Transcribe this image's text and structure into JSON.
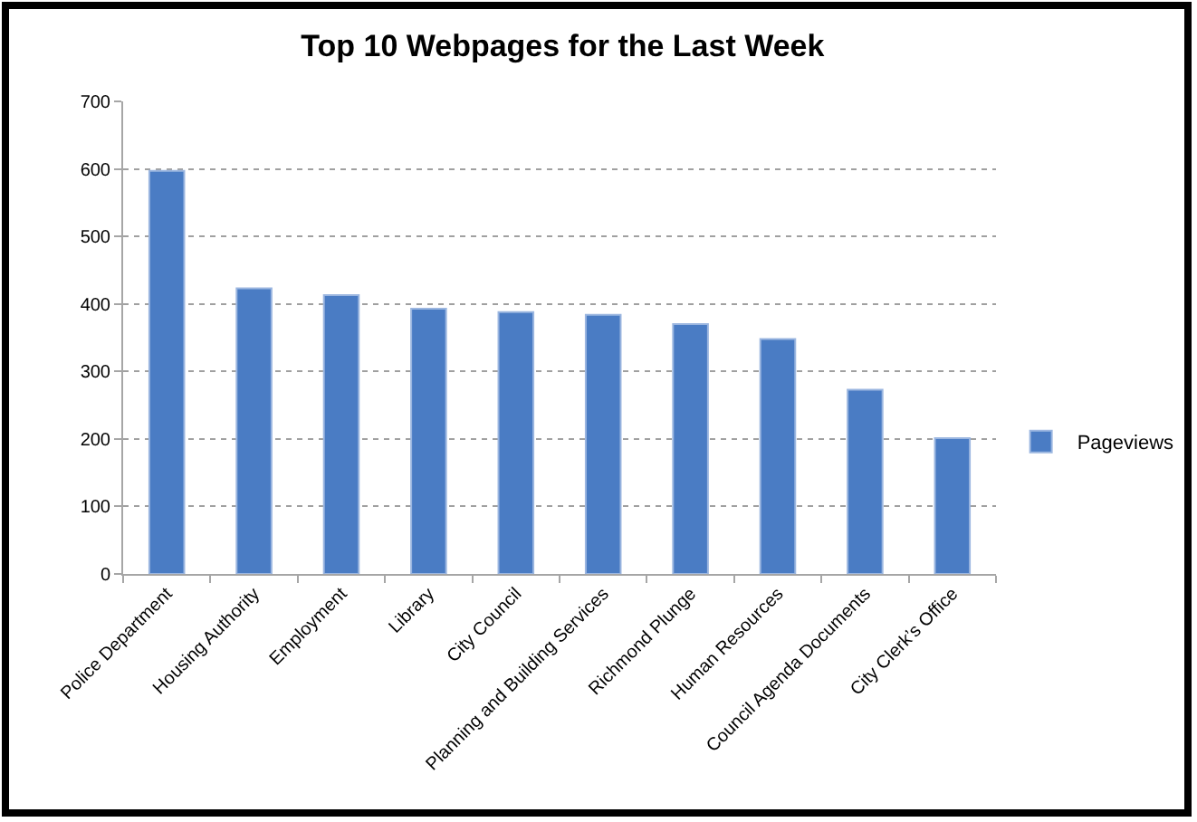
{
  "chart_data": {
    "type": "bar",
    "title": "Top 10 Webpages for the Last Week",
    "categories": [
      "Police Department",
      "Housing Authority",
      "Employment",
      "Library",
      "City Council",
      "Planning and Building Services",
      "Richmond Plunge",
      "Human Resources",
      "Council Agenda Documents",
      "City Clerk’s Office"
    ],
    "series": [
      {
        "name": "Pageviews",
        "color": "#4a7cc4",
        "values": [
          597,
          423,
          413,
          393,
          388,
          384,
          370,
          348,
          273,
          201
        ]
      }
    ],
    "ylim": [
      0,
      700
    ],
    "yticks": [
      0,
      100,
      200,
      300,
      400,
      500,
      600,
      700
    ],
    "grid": "y",
    "legend": "right"
  }
}
